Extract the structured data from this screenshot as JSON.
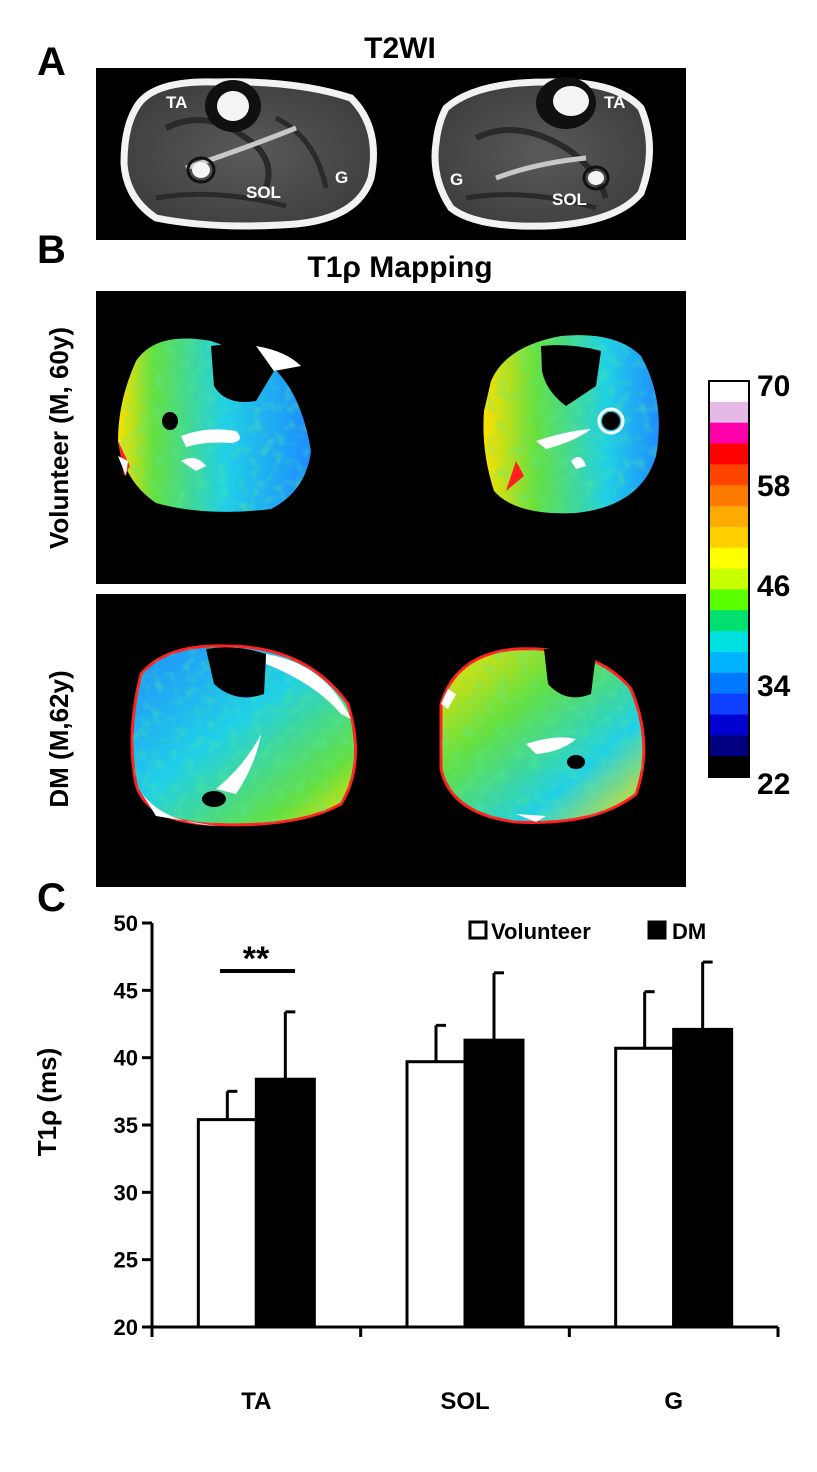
{
  "panel_a": {
    "letter": "A",
    "title": "T2WI",
    "labels": {
      "ta_left": "TA",
      "sol_left": "SOL",
      "g_left": "G",
      "ta_right": "TA",
      "g_right": "G",
      "sol_right": "SOL"
    }
  },
  "panel_b": {
    "letter": "B",
    "title": "T1ρ Mapping",
    "row1_label": "Volunteer (M, 60y)",
    "row2_label": "DM (M,62y)",
    "colorbar_ticks": [
      "70",
      "58",
      "46",
      "34",
      "22"
    ],
    "colorbar_colors": [
      "#ffffff",
      "#e6b8e6",
      "#ff00aa",
      "#ff0000",
      "#ff4400",
      "#ff7a00",
      "#ffaa00",
      "#ffd000",
      "#ffff00",
      "#c8ff00",
      "#5aff00",
      "#00e070",
      "#00e0e0",
      "#00b4ff",
      "#0078ff",
      "#1040ff",
      "#0000d0",
      "#000080",
      "#000000"
    ],
    "map_colors": {
      "blue": "#1e8cff",
      "cyan": "#20d0e6",
      "green": "#66e040",
      "yellow": "#ffe000",
      "red": "#ff2020",
      "white": "#ffffff"
    }
  },
  "panel_c": {
    "letter": "C",
    "significance": "**"
  },
  "chart_data": {
    "type": "bar",
    "categories": [
      "TA",
      "SOL",
      "G"
    ],
    "series": [
      {
        "name": "Volunteer",
        "values": [
          35.4,
          39.7,
          40.7
        ],
        "errors": [
          2.1,
          2.7,
          4.2
        ],
        "color": "#ffffff"
      },
      {
        "name": "DM",
        "values": [
          38.4,
          41.3,
          42.1
        ],
        "errors": [
          5.0,
          5.0,
          5.0
        ],
        "color": "#000000"
      }
    ],
    "ylabel": "T1ρ (ms)",
    "ylim": [
      20,
      50
    ],
    "yticks": [
      20,
      25,
      30,
      35,
      40,
      45,
      50
    ],
    "legend_position": "top-right",
    "grid": false
  }
}
